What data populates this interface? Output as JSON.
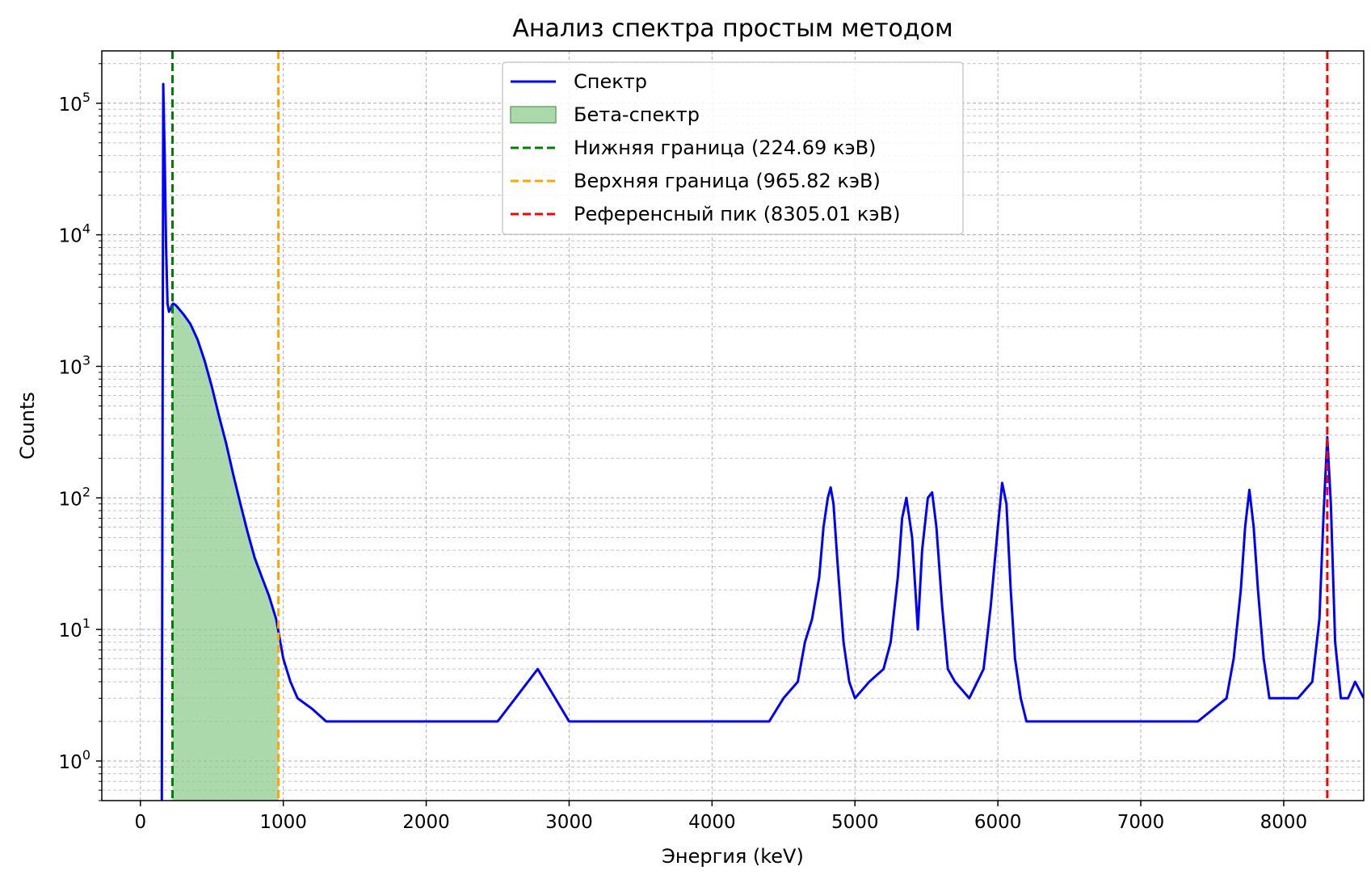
{
  "chart_data": {
    "type": "line",
    "title": "Анализ спектра простым методом",
    "xlabel": "Энергия (keV)",
    "ylabel": "Counts",
    "xlim": [
      -270,
      8560
    ],
    "ylim": [
      0.5,
      250000
    ],
    "yscale": "log",
    "grid": true,
    "legend_position": "top-center",
    "x_ticks": [
      0,
      1000,
      2000,
      3000,
      4000,
      5000,
      6000,
      7000,
      8000
    ],
    "x_tick_labels": [
      "0",
      "1000",
      "2000",
      "3000",
      "4000",
      "5000",
      "6000",
      "7000",
      "8000"
    ],
    "y_ticks": [
      1,
      10,
      100,
      1000,
      10000,
      100000
    ],
    "y_tick_labels": [
      {
        "base": "10",
        "exp": "0"
      },
      {
        "base": "10",
        "exp": "1"
      },
      {
        "base": "10",
        "exp": "2"
      },
      {
        "base": "10",
        "exp": "3"
      },
      {
        "base": "10",
        "exp": "4"
      },
      {
        "base": "10",
        "exp": "5"
      }
    ],
    "legend": [
      {
        "label": "Спектр",
        "kind": "line",
        "color": "#0000ff"
      },
      {
        "label": "Бета-спектр",
        "kind": "patch",
        "color": "#90cc90"
      },
      {
        "label": "Нижняя граница (224.69 кэВ)",
        "kind": "dash",
        "color": "#008000"
      },
      {
        "label": "Верхняя граница (965.82 кэВ)",
        "kind": "dash",
        "color": "#ffa500"
      },
      {
        "label": "Референсный пик (8305.01 кэВ)",
        "kind": "dash",
        "color": "#ff0000"
      }
    ],
    "series": [
      {
        "name": "Спектр",
        "color": "#0000ff",
        "x": [
          150,
          160,
          170,
          180,
          190,
          200,
          210,
          220,
          230,
          250,
          300,
          350,
          400,
          450,
          500,
          550,
          600,
          650,
          700,
          750,
          800,
          850,
          900,
          950,
          1000,
          1050,
          1100,
          1200,
          1300,
          1400,
          1500,
          1700,
          2000,
          2500,
          2780,
          3000,
          3500,
          3900,
          4200,
          4400,
          4500,
          4600,
          4650,
          4700,
          4750,
          4780,
          4810,
          4830,
          4850,
          4880,
          4920,
          4960,
          5000,
          5100,
          5200,
          5250,
          5300,
          5330,
          5360,
          5400,
          5440,
          5470,
          5510,
          5540,
          5570,
          5610,
          5650,
          5700,
          5800,
          5900,
          5950,
          6000,
          6030,
          6060,
          6090,
          6120,
          6160,
          6200,
          6300,
          6500,
          6800,
          7100,
          7400,
          7600,
          7650,
          7700,
          7730,
          7760,
          7790,
          7820,
          7860,
          7900,
          8000,
          8100,
          8200,
          8250,
          8280,
          8305,
          8330,
          8360,
          8400,
          8450,
          8500,
          8560
        ],
        "y": [
          0.5,
          140000,
          40000,
          8000,
          3000,
          2600,
          2700,
          2900,
          3000,
          2900,
          2500,
          2100,
          1600,
          1100,
          700,
          420,
          260,
          150,
          90,
          55,
          35,
          25,
          18,
          12,
          6,
          4,
          3,
          2.5,
          2,
          2,
          2,
          2,
          2,
          2,
          5,
          2,
          2,
          2,
          2,
          2,
          3,
          4,
          8,
          12,
          25,
          60,
          100,
          120,
          90,
          30,
          8,
          4,
          3,
          4,
          5,
          8,
          25,
          70,
          100,
          50,
          10,
          40,
          100,
          110,
          60,
          15,
          5,
          4,
          3,
          5,
          15,
          60,
          130,
          90,
          20,
          6,
          3,
          2,
          2,
          2,
          2,
          2,
          2,
          3,
          6,
          20,
          60,
          115,
          60,
          20,
          6,
          3,
          3,
          3,
          4,
          12,
          80,
          290,
          90,
          8,
          3,
          3,
          4,
          3
        ]
      },
      {
        "name": "Бета-спектр",
        "color": "#90cc90",
        "x_range": [
          224.69,
          965.82
        ]
      }
    ],
    "vlines": [
      {
        "x": 224.69,
        "color": "#008000"
      },
      {
        "x": 965.82,
        "color": "#ffa500"
      },
      {
        "x": 8305.01,
        "color": "#ff0000"
      }
    ]
  }
}
